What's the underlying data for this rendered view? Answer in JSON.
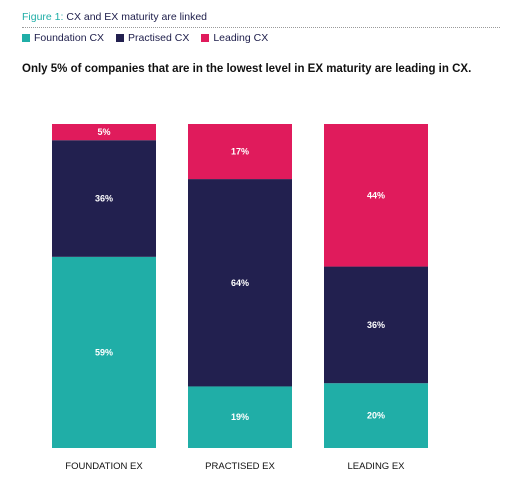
{
  "figure": {
    "prefix": "Figure 1:",
    "title": "CX and EX maturity are linked"
  },
  "headline": "Only 5% of companies that are in the lowest level in EX maturity are leading in CX.",
  "colors": {
    "foundation_cx": "#20aea7",
    "practised_cx": "#22204f",
    "leading_cx": "#e01b5c"
  },
  "chart_data": {
    "type": "bar",
    "stacked": true,
    "normalized_percent": true,
    "categories": [
      "FOUNDATION EX",
      "PRACTISED EX",
      "LEADING EX"
    ],
    "series": [
      {
        "name": "Foundation CX",
        "color": "#20aea7",
        "values": [
          59,
          19,
          20
        ],
        "labels": [
          "59%",
          "19%",
          "20%"
        ]
      },
      {
        "name": "Practised CX",
        "color": "#22204f",
        "values": [
          36,
          64,
          36
        ],
        "labels": [
          "36%",
          "64%",
          "36%"
        ]
      },
      {
        "name": "Leading CX",
        "color": "#e01b5c",
        "values": [
          5,
          17,
          44
        ],
        "labels": [
          "5%",
          "17%",
          "44%"
        ]
      }
    ],
    "ylim": [
      0,
      100
    ],
    "grid": false,
    "legend_position": "top-left"
  }
}
